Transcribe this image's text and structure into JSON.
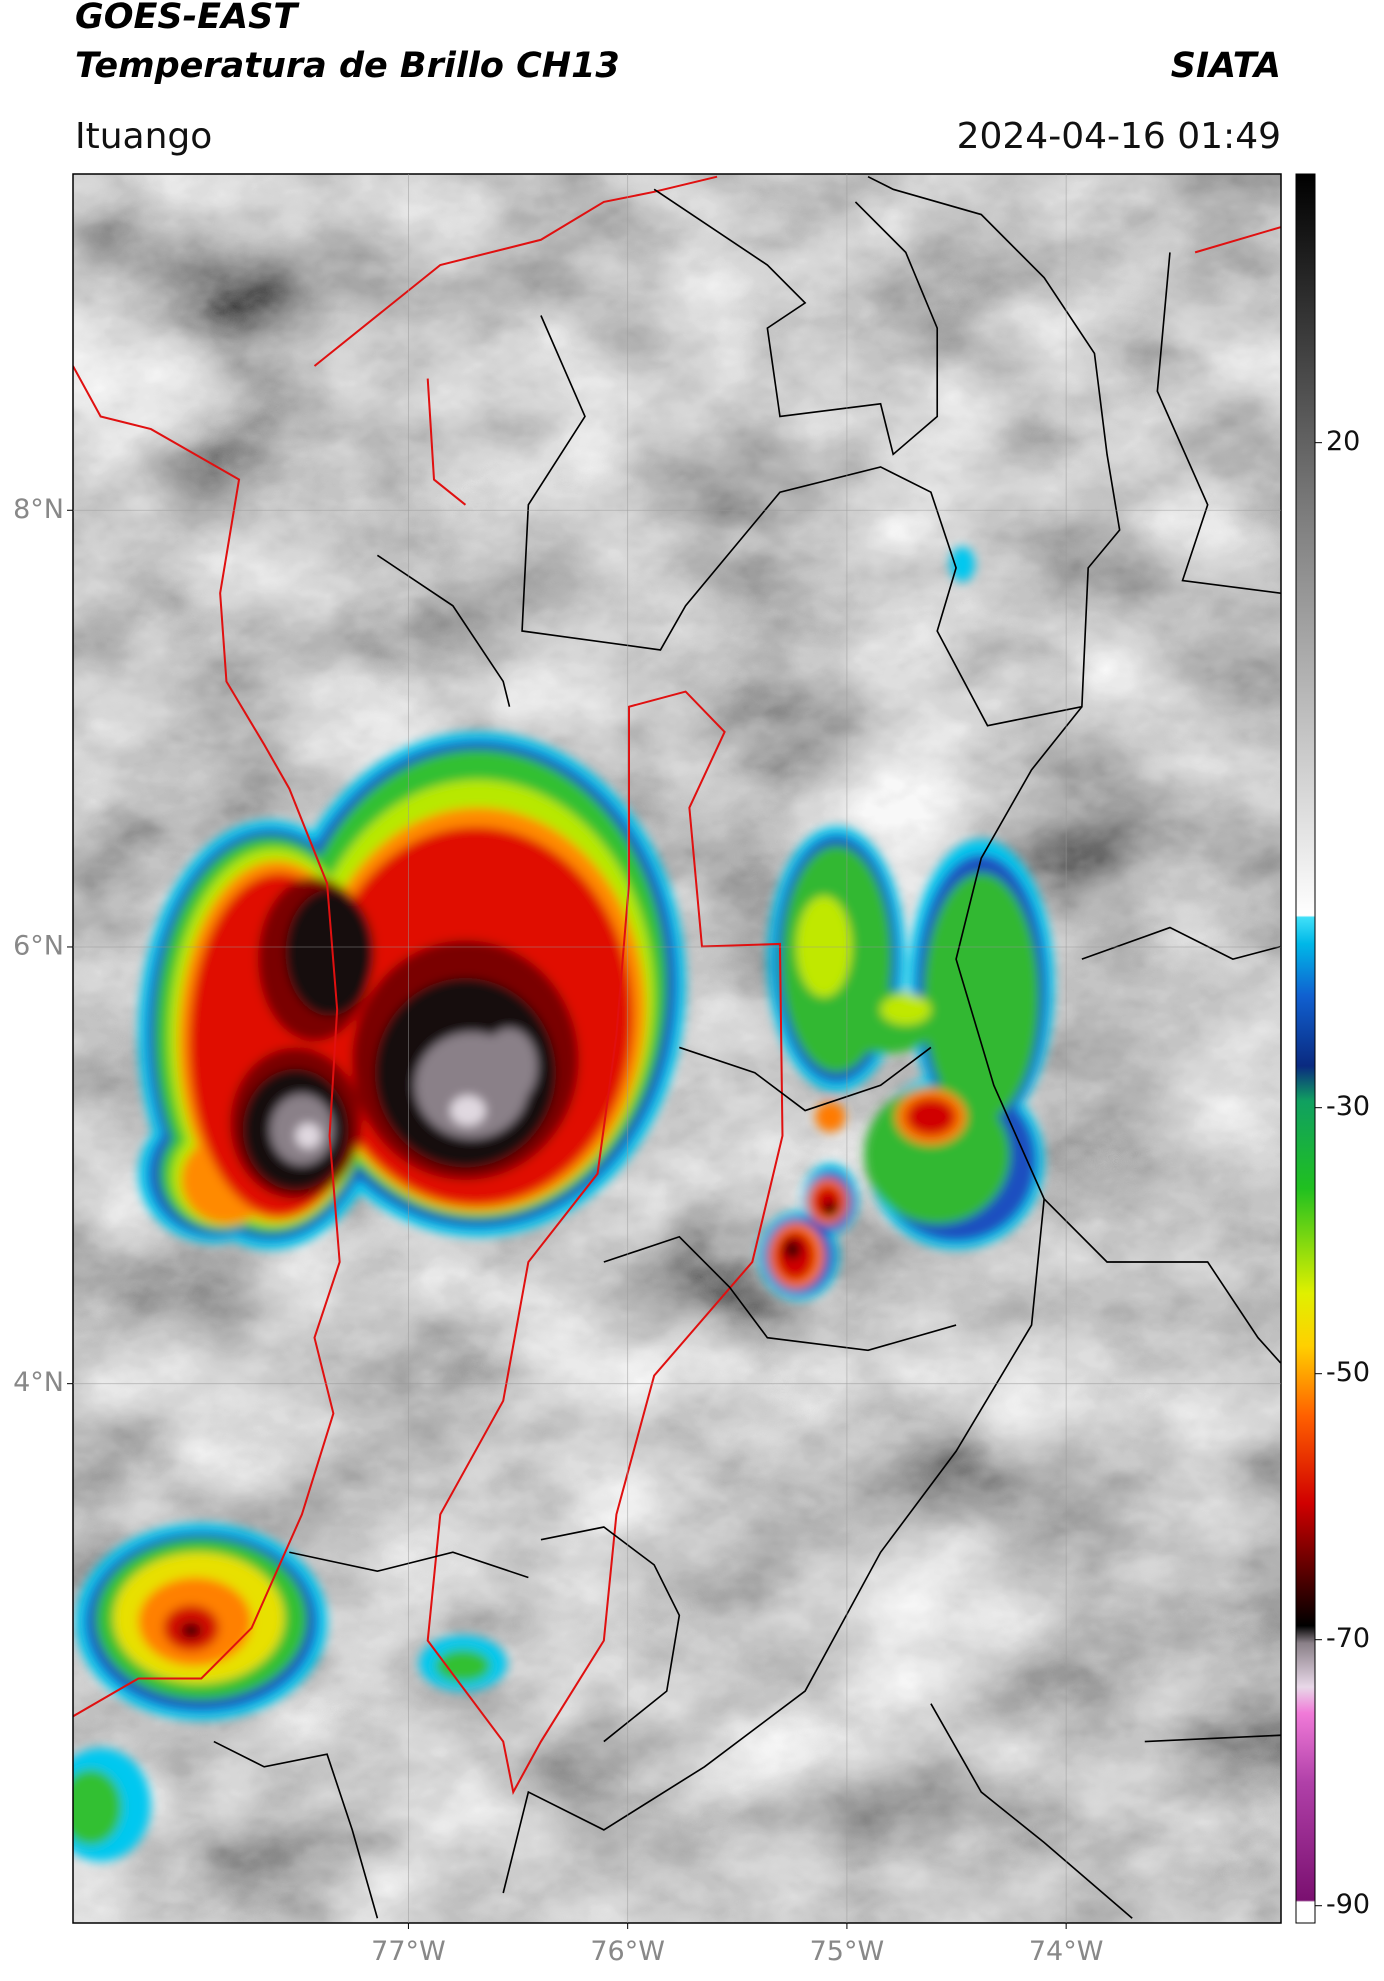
{
  "header": {
    "title": "GOES-EAST",
    "subtitle": "Temperatura de Brillo CH13",
    "brand": "SIATA",
    "location": "Ituango",
    "timestamp": "2024-04-16 01:49"
  },
  "map": {
    "lon_lim": [
      -78.53,
      -73.02
    ],
    "lat_lim": [
      1.53,
      9.54
    ],
    "grid": true,
    "lon_ticks": [
      {
        "value": -77,
        "label": "77°W"
      },
      {
        "value": -76,
        "label": "76°W"
      },
      {
        "value": -75,
        "label": "75°W"
      },
      {
        "value": -74,
        "label": "74°W"
      }
    ],
    "lat_ticks": [
      {
        "value": 8,
        "label": "8°N"
      },
      {
        "value": 6,
        "label": "6°N"
      },
      {
        "value": 4,
        "label": "4°N"
      }
    ]
  },
  "colorbar": {
    "lim": [
      -91.3,
      40.2
    ],
    "ticks": [
      20,
      -30,
      -50,
      -70,
      -90
    ]
  }
}
